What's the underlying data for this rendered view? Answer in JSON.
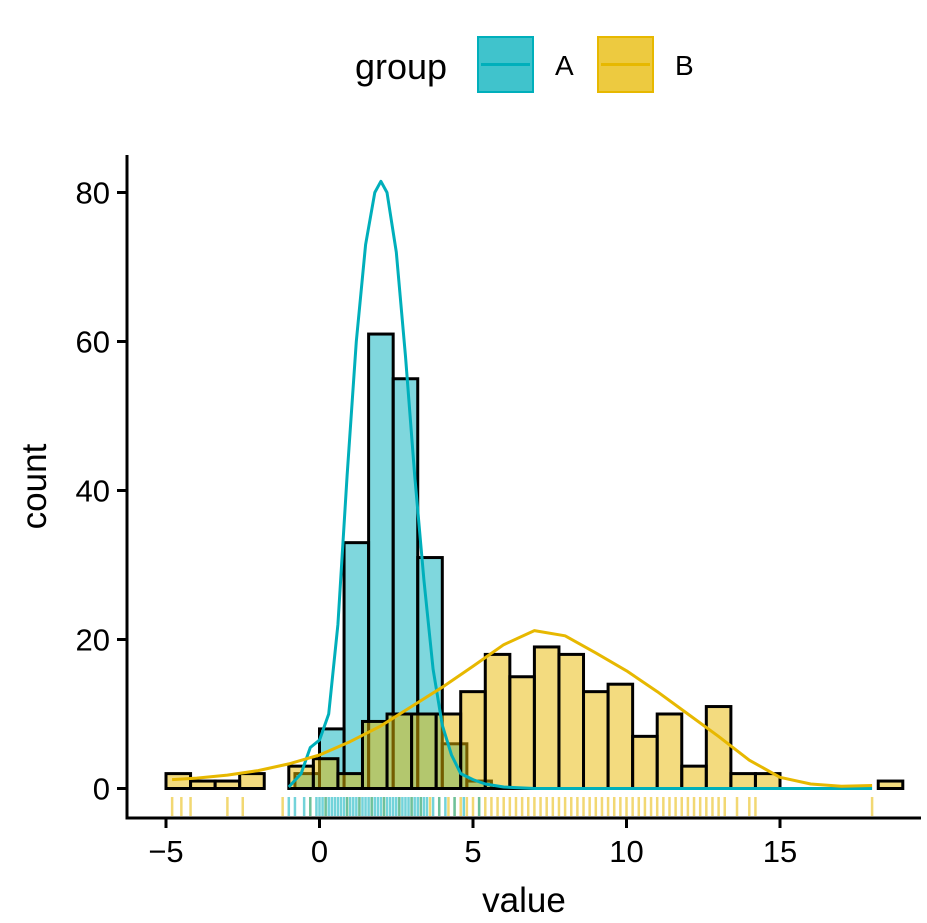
{
  "chart_data": {
    "type": "histogram",
    "title": "",
    "xlabel": "value",
    "ylabel": "count",
    "xlim": [
      -5.6,
      20.3
    ],
    "ylim": [
      -4,
      85
    ],
    "x_ticks": [
      -5,
      0,
      5,
      10,
      15
    ],
    "y_ticks": [
      0,
      20,
      40,
      60,
      80
    ],
    "x_tick_labels": [
      "−5",
      "0",
      "5",
      "10",
      "15"
    ],
    "y_tick_labels": [
      "0",
      "20",
      "40",
      "60",
      "80"
    ],
    "legend": {
      "title": "group",
      "position": "top",
      "entries": [
        {
          "label": "A",
          "color": "#00AFBB"
        },
        {
          "label": "B",
          "color": "#E7B800"
        }
      ]
    },
    "bin_width": 0.8,
    "series": [
      {
        "name": "A",
        "color": "#00AFBB",
        "fill_opacity": 0.5,
        "bins": [
          {
            "x": -0.8,
            "count": 2
          },
          {
            "x": 0.0,
            "count": 8
          },
          {
            "x": 0.8,
            "count": 33
          },
          {
            "x": 1.6,
            "count": 61
          },
          {
            "x": 2.4,
            "count": 55
          },
          {
            "x": 3.2,
            "count": 31
          },
          {
            "x": 4.0,
            "count": 6
          },
          {
            "x": 4.8,
            "count": 1
          }
        ],
        "density_curve": [
          [
            -1.0,
            0.2
          ],
          [
            -0.6,
            2.0
          ],
          [
            -0.3,
            5.5
          ],
          [
            0.0,
            6.5
          ],
          [
            0.3,
            10
          ],
          [
            0.6,
            22
          ],
          [
            0.9,
            42
          ],
          [
            1.2,
            60
          ],
          [
            1.5,
            73
          ],
          [
            1.8,
            80
          ],
          [
            2.0,
            81.5
          ],
          [
            2.2,
            80
          ],
          [
            2.5,
            72
          ],
          [
            2.8,
            58
          ],
          [
            3.1,
            42
          ],
          [
            3.4,
            28
          ],
          [
            3.7,
            16
          ],
          [
            4.0,
            8.5
          ],
          [
            4.3,
            4.5
          ],
          [
            4.6,
            2.0
          ],
          [
            5.0,
            1.2
          ],
          [
            5.4,
            0.6
          ],
          [
            6.0,
            0.2
          ],
          [
            7.0,
            0
          ],
          [
            18.0,
            0
          ]
        ],
        "rug": [
          -1.0,
          -0.8,
          -0.5,
          -0.3,
          -0.1,
          0.0,
          0.1,
          0.2,
          0.3,
          0.4,
          0.5,
          0.6,
          0.7,
          0.8,
          0.9,
          1.0,
          1.1,
          1.2,
          1.3,
          1.4,
          1.5,
          1.6,
          1.7,
          1.8,
          1.9,
          2.0,
          2.1,
          2.2,
          2.3,
          2.4,
          2.5,
          2.6,
          2.7,
          2.8,
          2.9,
          3.0,
          3.1,
          3.2,
          3.3,
          3.4,
          3.5,
          3.7,
          3.9,
          4.1,
          4.4,
          4.7,
          5.2
        ]
      },
      {
        "name": "B",
        "color": "#E7B800",
        "fill_opacity": 0.5,
        "bins": [
          {
            "x": -5.0,
            "count": 2
          },
          {
            "x": -4.2,
            "count": 1
          },
          {
            "x": -3.4,
            "count": 1
          },
          {
            "x": -2.6,
            "count": 2
          },
          {
            "x": -1.8,
            "count": 0
          },
          {
            "x": -1.0,
            "count": 3
          },
          {
            "x": -0.2,
            "count": 4
          },
          {
            "x": 0.6,
            "count": 2
          },
          {
            "x": 1.4,
            "count": 9
          },
          {
            "x": 2.2,
            "count": 10
          },
          {
            "x": 3.0,
            "count": 10
          },
          {
            "x": 3.8,
            "count": 10
          },
          {
            "x": 4.6,
            "count": 13
          },
          {
            "x": 5.4,
            "count": 18
          },
          {
            "x": 6.2,
            "count": 15
          },
          {
            "x": 7.0,
            "count": 19
          },
          {
            "x": 7.8,
            "count": 18
          },
          {
            "x": 8.6,
            "count": 13
          },
          {
            "x": 9.4,
            "count": 14
          },
          {
            "x": 10.2,
            "count": 7
          },
          {
            "x": 11.0,
            "count": 10
          },
          {
            "x": 11.8,
            "count": 3
          },
          {
            "x": 12.6,
            "count": 11
          },
          {
            "x": 13.4,
            "count": 2
          },
          {
            "x": 14.2,
            "count": 2
          },
          {
            "x": 15.0,
            "count": 0
          },
          {
            "x": 15.8,
            "count": 0
          },
          {
            "x": 16.6,
            "count": 0
          },
          {
            "x": 17.4,
            "count": 0
          },
          {
            "x": 18.2,
            "count": 1
          }
        ],
        "density_curve": [
          [
            -4.8,
            1.2
          ],
          [
            -4.0,
            1.4
          ],
          [
            -3.0,
            1.8
          ],
          [
            -2.0,
            2.4
          ],
          [
            -1.0,
            3.3
          ],
          [
            0.0,
            4.5
          ],
          [
            1.0,
            6.3
          ],
          [
            2.0,
            8.4
          ],
          [
            3.0,
            11.0
          ],
          [
            4.0,
            13.6
          ],
          [
            5.0,
            16.4
          ],
          [
            6.0,
            19.3
          ],
          [
            7.0,
            21.2
          ],
          [
            8.0,
            20.5
          ],
          [
            9.0,
            18.2
          ],
          [
            10.0,
            15.8
          ],
          [
            11.0,
            13.0
          ],
          [
            12.0,
            10.0
          ],
          [
            13.0,
            7.0
          ],
          [
            14.0,
            3.8
          ],
          [
            15.0,
            1.5
          ],
          [
            16.0,
            0.6
          ],
          [
            17.0,
            0.3
          ],
          [
            18.0,
            0.4
          ]
        ],
        "rug": [
          -4.8,
          -4.5,
          -4.2,
          -3.0,
          -2.5,
          -1.2,
          -0.3,
          0.2,
          0.9,
          1.3,
          1.7,
          2.1,
          2.6,
          3.0,
          3.3,
          3.6,
          3.9,
          4.2,
          4.4,
          4.6,
          4.8,
          5.0,
          5.2,
          5.4,
          5.6,
          5.8,
          6.0,
          6.2,
          6.4,
          6.6,
          6.8,
          7.0,
          7.2,
          7.4,
          7.6,
          7.8,
          8.0,
          8.2,
          8.4,
          8.6,
          8.8,
          9.0,
          9.2,
          9.4,
          9.6,
          9.8,
          10.0,
          10.2,
          10.4,
          10.6,
          10.8,
          11.0,
          11.2,
          11.4,
          11.6,
          11.8,
          12.0,
          12.2,
          12.4,
          12.6,
          12.8,
          13.0,
          13.2,
          13.6,
          14.0,
          14.2,
          18.0
        ]
      }
    ]
  }
}
